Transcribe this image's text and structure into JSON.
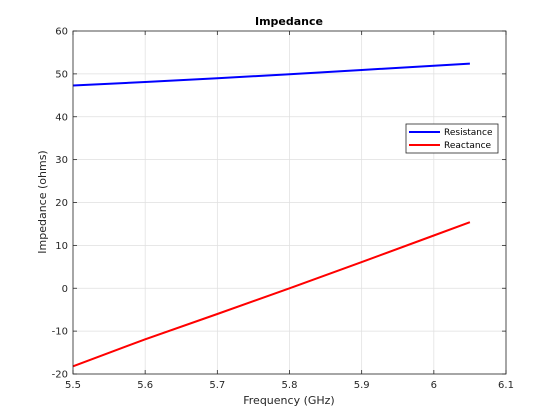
{
  "chart_data": {
    "type": "line",
    "title": "Impedance",
    "xlabel": "Frequency (GHz)",
    "ylabel": "Impedance (ohms)",
    "xlim": [
      5.5,
      6.1
    ],
    "ylim": [
      -20,
      60
    ],
    "xticks": [
      "5.5",
      "5.6",
      "5.7",
      "5.8",
      "5.9",
      "6",
      "6.1"
    ],
    "yticks": [
      "-20",
      "-10",
      "0",
      "10",
      "20",
      "30",
      "40",
      "50",
      "60"
    ],
    "grid": true,
    "legend_position": "right",
    "series": [
      {
        "name": "Resistance",
        "color": "#0000ff",
        "x": [
          5.5,
          5.6,
          5.7,
          5.8,
          5.9,
          6.0,
          6.05
        ],
        "y": [
          47.3,
          48.1,
          49.0,
          49.9,
          50.9,
          51.9,
          52.4
        ]
      },
      {
        "name": "Reactance",
        "color": "#ff0000",
        "x": [
          5.5,
          5.6,
          5.7,
          5.8,
          5.9,
          6.0,
          6.05
        ],
        "y": [
          -18.2,
          -11.9,
          -6.0,
          0.0,
          6.1,
          12.3,
          15.4
        ]
      }
    ]
  }
}
